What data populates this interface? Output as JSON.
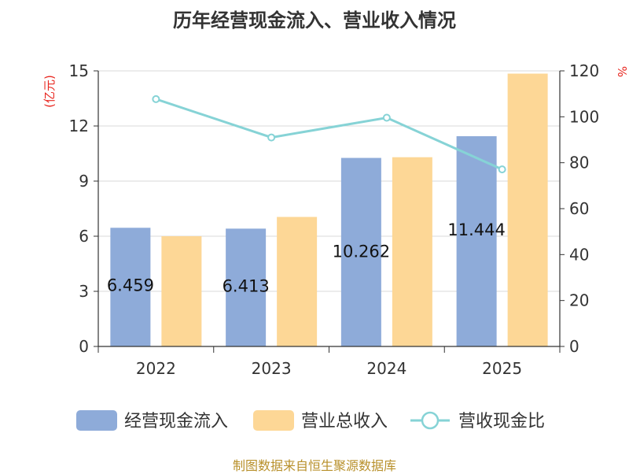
{
  "title": "历年经营现金流入、营业收入情况",
  "source": "制图数据来自恒生聚源数据库",
  "chart_data": {
    "type": "bar",
    "categories": [
      "2022",
      "2023",
      "2024",
      "2025"
    ],
    "series": [
      {
        "name": "经营现金流入",
        "type": "bar",
        "axis": "left",
        "color": "#8eabd9",
        "values": [
          6.459,
          6.413,
          10.262,
          11.444
        ],
        "labels": [
          "6.459",
          "6.413",
          "10.262",
          "11.444"
        ]
      },
      {
        "name": "营业总收入",
        "type": "bar",
        "axis": "left",
        "color": "#fdd796",
        "values": [
          6.0,
          7.05,
          10.3,
          14.85
        ]
      },
      {
        "name": "营收现金比",
        "type": "line",
        "axis": "right",
        "color": "#86d3d6",
        "values": [
          107.7,
          91.0,
          99.6,
          77.1
        ]
      }
    ],
    "left_axis": {
      "unit": "(亿元)",
      "ylim": [
        0,
        15
      ],
      "ticks": [
        "0",
        "3",
        "6",
        "9",
        "12",
        "15"
      ]
    },
    "right_axis": {
      "unit": "%",
      "ylim": [
        0,
        120
      ],
      "ticks": [
        "0",
        "20",
        "40",
        "60",
        "80",
        "100",
        "120"
      ]
    },
    "grid": true,
    "legend": "bottom"
  }
}
